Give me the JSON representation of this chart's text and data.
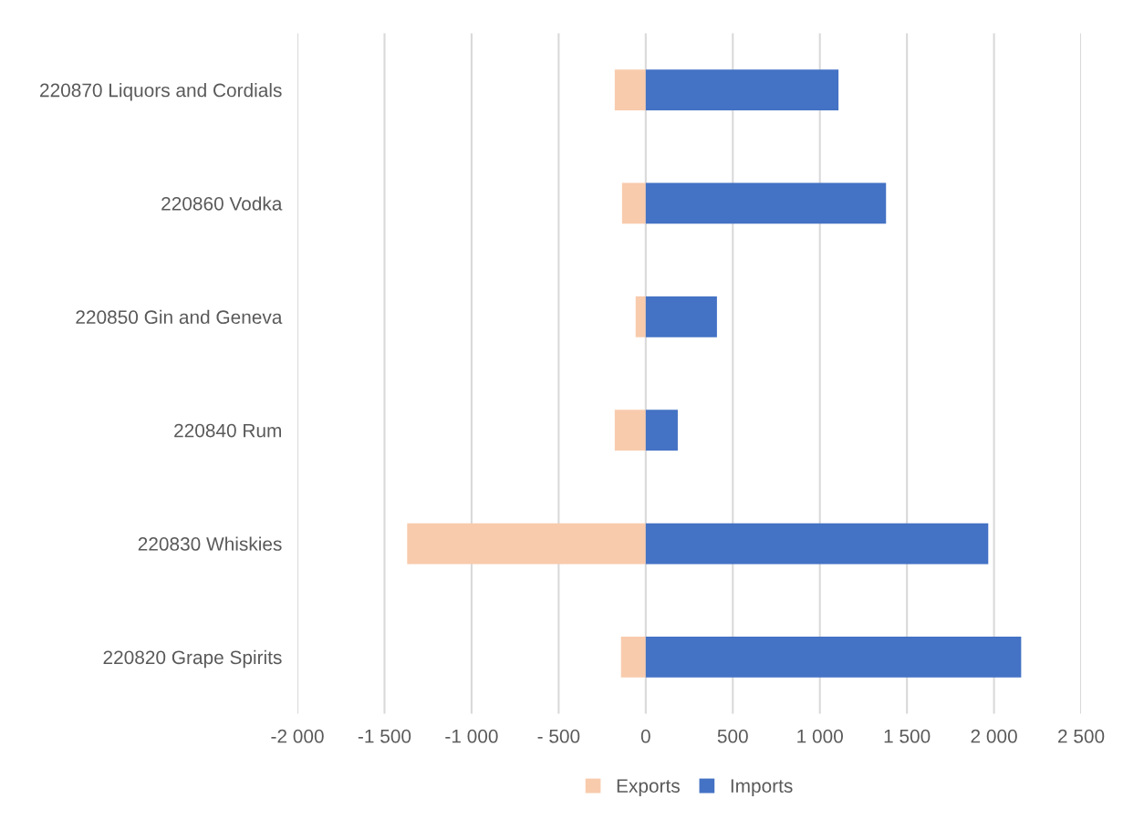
{
  "chart_data": {
    "type": "bar",
    "orientation": "horizontal",
    "stacked": true,
    "categories": [
      "220870 Liquors and Cordials",
      "220860 Vodka",
      "220850 Gin and Geneva",
      "220840 Rum",
      "220830 Whiskies",
      "220820 Grape Spirits"
    ],
    "series": [
      {
        "name": "Exports",
        "color": "#f8cbad",
        "values": [
          -178,
          -136,
          -58,
          -178,
          -1370,
          -142
        ]
      },
      {
        "name": "Imports",
        "color": "#4472c4",
        "values": [
          1107,
          1380,
          409,
          184,
          1967,
          2156
        ]
      }
    ],
    "xlim": [
      -2000,
      2500
    ],
    "xticks": [
      {
        "value": -2000,
        "label": "-2 000"
      },
      {
        "value": -1500,
        "label": "-1 500"
      },
      {
        "value": -1000,
        "label": "-1 000"
      },
      {
        "value": -500,
        "label": "- 500"
      },
      0,
      500,
      {
        "value": 1000,
        "label": "1 000"
      },
      {
        "value": 1500,
        "label": "1 500"
      },
      {
        "value": 2000,
        "label": "2 000"
      },
      {
        "value": 2500,
        "label": "2 500"
      }
    ],
    "grid": "x",
    "legend": "bottom"
  }
}
